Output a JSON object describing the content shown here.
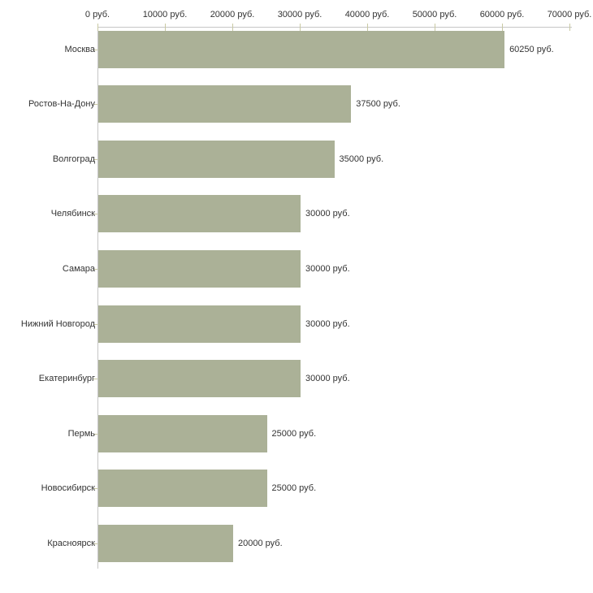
{
  "chart_data": {
    "type": "bar",
    "orientation": "horizontal",
    "title": "",
    "categories": [
      "Москва",
      "Ростов-На-Дону",
      "Волгоград",
      "Челябинск",
      "Самара",
      "Нижний Новгород",
      "Екатеринбург",
      "Пермь",
      "Новосибирск",
      "Красноярск"
    ],
    "values": [
      60250,
      37500,
      35000,
      30000,
      30000,
      30000,
      30000,
      25000,
      25000,
      20000
    ],
    "value_labels": [
      "60250 руб.",
      "37500 руб.",
      "35000 руб.",
      "30000 руб.",
      "30000 руб.",
      "30000 руб.",
      "30000 руб.",
      "25000 руб.",
      "25000 руб.",
      "20000 руб."
    ],
    "x_axis": {
      "position": "top",
      "unit": "руб.",
      "min": 0,
      "max": 70000,
      "ticks": [
        0,
        10000,
        20000,
        30000,
        40000,
        50000,
        60000,
        70000
      ],
      "tick_labels": [
        "0 руб.",
        "10000 руб.",
        "20000 руб.",
        "30000 руб.",
        "40000 руб.",
        "50000 руб.",
        "60000 руб.",
        "70000 руб."
      ]
    },
    "grid": false,
    "legend": false,
    "colors": {
      "bar": "#abb197",
      "axis_line": "#c6c6c6",
      "tick": "#c9c9a3",
      "text": "#333333",
      "background": "#ffffff"
    }
  }
}
